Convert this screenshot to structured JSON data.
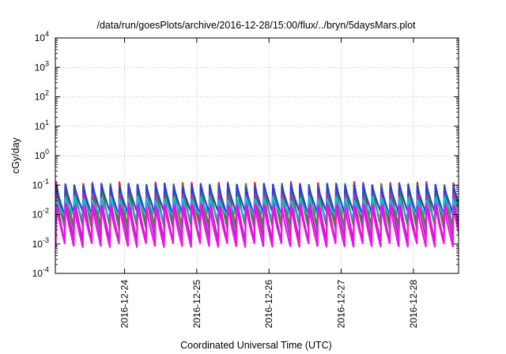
{
  "chart_data": {
    "type": "line",
    "title": "/data/run/goesPlots/archive/2016-12-28/15:00/flux/../bryn/5daysMars.plot",
    "xlabel": "Coordinated Universal Time (UTC)",
    "ylabel": "cGy/day",
    "yscale": "log",
    "ylim": [
      0.0001,
      10000
    ],
    "y_ticks": [
      {
        "base": "10",
        "exp": "-4",
        "value": 0.0001
      },
      {
        "base": "10",
        "exp": "-3",
        "value": 0.001
      },
      {
        "base": "10",
        "exp": "-2",
        "value": 0.01
      },
      {
        "base": "10",
        "exp": "-1",
        "value": 0.1
      },
      {
        "base": "10",
        "exp": "0",
        "value": 1
      },
      {
        "base": "10",
        "exp": "1",
        "value": 10
      },
      {
        "base": "10",
        "exp": "2",
        "value": 100
      },
      {
        "base": "10",
        "exp": "3",
        "value": 1000
      },
      {
        "base": "10",
        "exp": "4",
        "value": 10000
      }
    ],
    "xlim": [
      "2016-12-23T01:00",
      "2016-12-28T15:00"
    ],
    "x_ticks": [
      "2016-12-24",
      "2016-12-25",
      "2016-12-26",
      "2016-12-27",
      "2016-12-28"
    ],
    "grid": true,
    "legend": "none",
    "pattern": {
      "peak_period_hours": 3,
      "peak_time_offset_hours": 0.3
    },
    "series": [
      {
        "color": "#e8192c",
        "peak": 0.11,
        "trough": 0.0042
      },
      {
        "color": "#1f9e3a",
        "peak": 0.095,
        "trough": 0.0035
      },
      {
        "color": "#2b3fd6",
        "peak": 0.1,
        "trough": 0.011
      },
      {
        "color": "#c020c8",
        "peak": 0.045,
        "trough": 0.0013
      },
      {
        "color": "#1ab8d8",
        "peak": 0.035,
        "trough": 0.0085
      },
      {
        "color": "#f010e8",
        "peak": 0.02,
        "trough": 0.0009
      }
    ]
  }
}
